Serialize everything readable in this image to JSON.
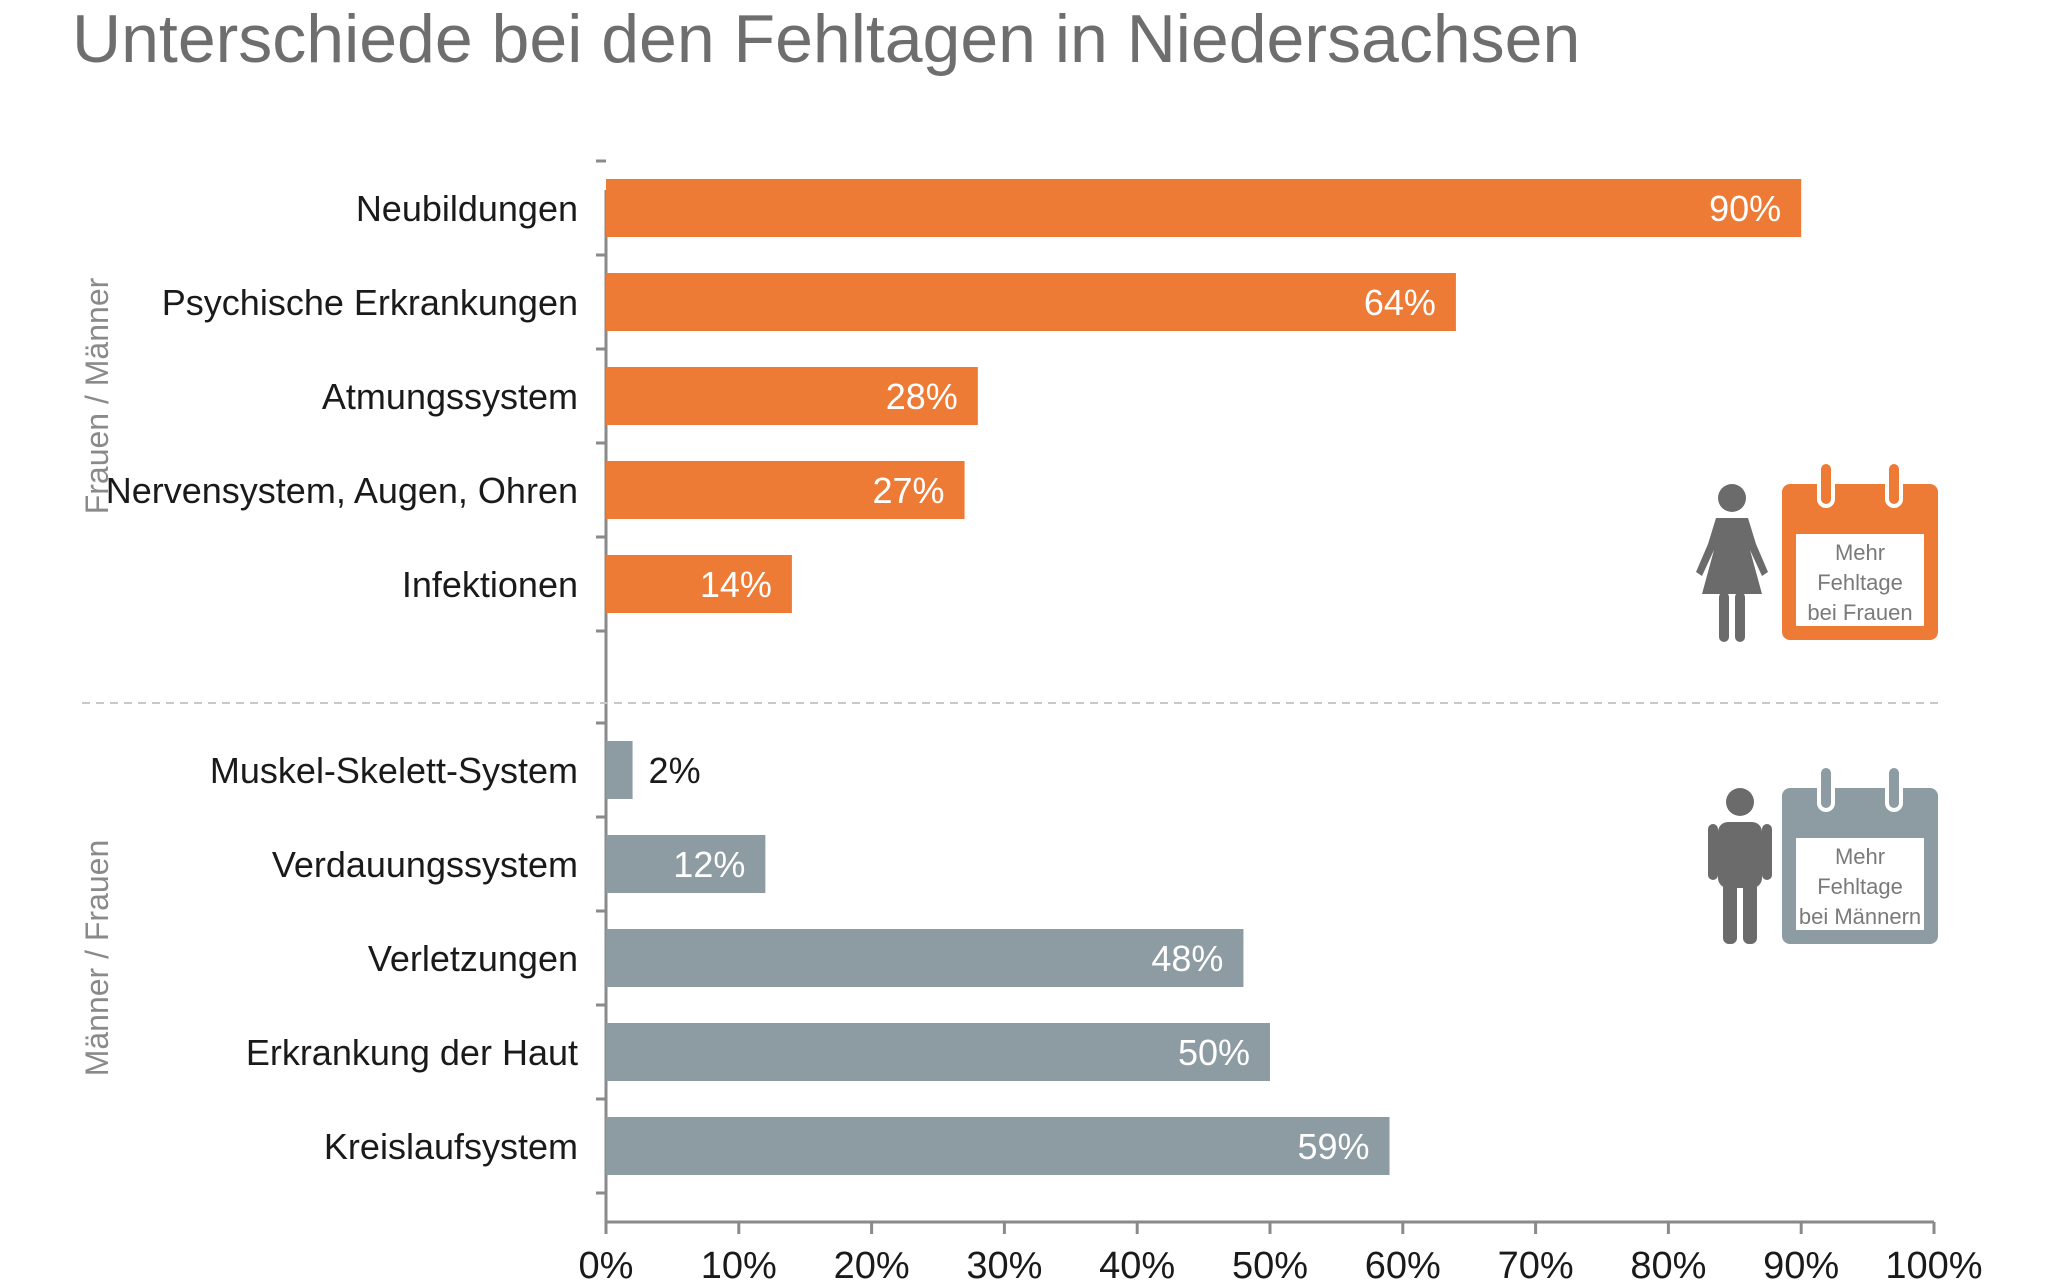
{
  "chart_data": {
    "type": "bar",
    "orientation": "horizontal",
    "title": "Unterschiede bei den Fehltagen in Niedersachsen",
    "xlim": [
      0,
      100
    ],
    "x_ticks": [
      "0%",
      "10%",
      "20%",
      "30%",
      "40%",
      "50%",
      "60%",
      "70%",
      "80%",
      "90%",
      "100%"
    ],
    "groups": [
      {
        "label": "Frauen / Männer",
        "color": "#ee7b35",
        "legend_lines": [
          "Mehr",
          "Fehltage",
          "bei Frauen"
        ],
        "categories": [
          "Neubildungen",
          "Psychische Erkrankungen",
          "Atmungssystem",
          "Nervensystem, Augen, Ohren",
          "Infektionen"
        ],
        "values": [
          90,
          64,
          28,
          27,
          14
        ],
        "value_labels": [
          "90%",
          "64%",
          "28%",
          "27%",
          "14%"
        ]
      },
      {
        "label": "Männer / Frauen",
        "color": "#8d9ba3",
        "legend_lines": [
          "Mehr",
          "Fehltage",
          "bei Männern"
        ],
        "categories": [
          "Muskel-Skelett-System",
          "Verdauungssystem",
          "Verletzungen",
          "Erkrankung der Haut",
          "Kreislaufsystem"
        ],
        "values": [
          2,
          12,
          48,
          50,
          59
        ],
        "value_labels": [
          "2%",
          "12%",
          "48%",
          "50%",
          "59%"
        ]
      }
    ],
    "grid": false
  },
  "icons": {
    "female": "woman-icon",
    "male": "man-icon",
    "calendar": "calendar-icon"
  },
  "colors": {
    "axis": "#8a8a8a",
    "divider": "#c8c8c8",
    "person": "#6b6b6b"
  }
}
